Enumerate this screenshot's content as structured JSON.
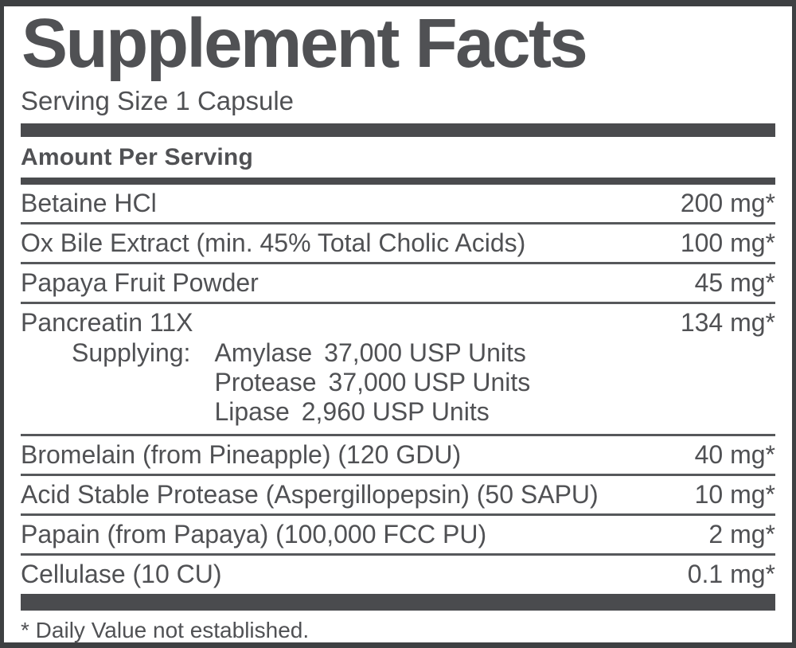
{
  "label": {
    "title": "Supplement Facts",
    "serving_size": "Serving Size 1 Capsule",
    "column_header": "Amount Per Serving",
    "rows": [
      {
        "name": "Betaine HCl",
        "amount": "200 mg*"
      },
      {
        "name": "Ox Bile Extract (min. 45% Total Cholic Acids)",
        "amount": "100 mg*"
      },
      {
        "name": "Papaya Fruit Powder",
        "amount": "45 mg*"
      },
      {
        "name": "Pancreatin 11X",
        "amount": "134 mg*",
        "supplying": {
          "label": "Supplying:",
          "enzymes": [
            {
              "name": "Amylase",
              "amount": "37,000 USP Units"
            },
            {
              "name": "Protease",
              "amount": "37,000 USP Units"
            },
            {
              "name": "Lipase",
              "amount": "2,960 USP Units"
            }
          ]
        }
      },
      {
        "name": "Bromelain (from Pineapple) (120 GDU)",
        "amount": "40 mg*"
      },
      {
        "name": "Acid Stable Protease (Aspergillopepsin) (50 SAPU)",
        "amount": "10 mg*"
      },
      {
        "name": "Papain (from Papaya) (100,000 FCC PU)",
        "amount": "2 mg*"
      },
      {
        "name": "Cellulase (10 CU)",
        "amount": "0.1 mg*"
      }
    ],
    "footnote": "* Daily Value not established.",
    "colors": {
      "ink": "#505154",
      "bar": "#4a4b4e",
      "divider": "#56585b",
      "border": "#3e4042",
      "background": "#ffffff"
    }
  }
}
